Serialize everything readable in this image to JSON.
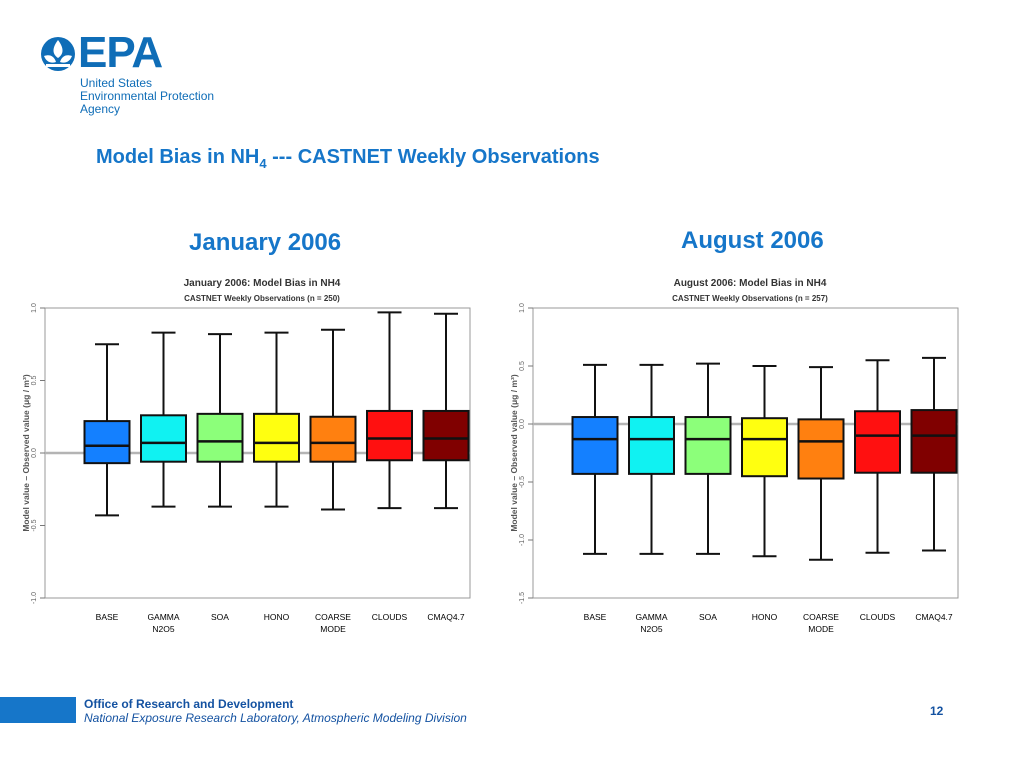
{
  "logo": {
    "word": "EPA",
    "line1": "United States",
    "line2": "Environmental Protection",
    "line3": "Agency"
  },
  "slide": {
    "title_main": "Model Bias in NH",
    "title_sub": "4",
    "title_rest": " --- CASTNET Weekly Observations"
  },
  "panels": [
    {
      "heading": "January 2006"
    },
    {
      "heading": "August 2006"
    }
  ],
  "footer": {
    "line1": "Office of Research and Development",
    "line2": "National Exposure Research Laboratory, Atmospheric Modeling Division",
    "page_number": "12"
  },
  "colors": {
    "brand_blue": "#1676c9",
    "box_colors": [
      "#1480ff",
      "#10f2f2",
      "#8cff7a",
      "#ffff10",
      "#ff8010",
      "#ff1010",
      "#800000"
    ]
  },
  "chart_data": [
    {
      "type": "boxplot",
      "title": "January  2006: Model Bias in NH4",
      "subtitle": "CASTNET Weekly Observations (n = 250)",
      "ylabel": "Model value – Observed value  (μg / m³)",
      "ylim": [
        -1.0,
        1.0
      ],
      "yticks": [
        -1.0,
        -0.5,
        0.0,
        0.5,
        1.0
      ],
      "ytick_labels": [
        "-1.0",
        "-0.5",
        "0.0",
        "0.5",
        "1.0"
      ],
      "reference_line": 0.0,
      "categories": [
        [
          "BASE"
        ],
        [
          "GAMMA",
          "N2O5"
        ],
        [
          "SOA"
        ],
        [
          "HONO"
        ],
        [
          "COARSE",
          "MODE"
        ],
        [
          "CLOUDS"
        ],
        [
          "CMAQ4.7"
        ]
      ],
      "boxes": [
        {
          "whisker_low": -0.43,
          "q1": -0.07,
          "median": 0.05,
          "q3": 0.22,
          "whisker_high": 0.75
        },
        {
          "whisker_low": -0.37,
          "q1": -0.06,
          "median": 0.07,
          "q3": 0.26,
          "whisker_high": 0.83
        },
        {
          "whisker_low": -0.37,
          "q1": -0.06,
          "median": 0.08,
          "q3": 0.27,
          "whisker_high": 0.82
        },
        {
          "whisker_low": -0.37,
          "q1": -0.06,
          "median": 0.07,
          "q3": 0.27,
          "whisker_high": 0.83
        },
        {
          "whisker_low": -0.39,
          "q1": -0.06,
          "median": 0.07,
          "q3": 0.25,
          "whisker_high": 0.85
        },
        {
          "whisker_low": -0.38,
          "q1": -0.05,
          "median": 0.1,
          "q3": 0.29,
          "whisker_high": 0.97
        },
        {
          "whisker_low": -0.38,
          "q1": -0.05,
          "median": 0.1,
          "q3": 0.29,
          "whisker_high": 0.96
        }
      ]
    },
    {
      "type": "boxplot",
      "title": "August  2006: Model Bias in NH4",
      "subtitle": "CASTNET Weekly Observations (n = 257)",
      "ylabel": "Model value – Observed value  (μg / m³)",
      "ylim": [
        -1.5,
        1.0
      ],
      "yticks": [
        -1.5,
        -1.0,
        -0.5,
        0.0,
        0.5,
        1.0
      ],
      "ytick_labels": [
        "-1.5",
        "-1.0",
        "-0.5",
        "0.0",
        "0.5",
        "1.0"
      ],
      "reference_line": 0.0,
      "categories": [
        [
          "BASE"
        ],
        [
          "GAMMA",
          "N2O5"
        ],
        [
          "SOA"
        ],
        [
          "HONO"
        ],
        [
          "COARSE",
          "MODE"
        ],
        [
          "CLOUDS"
        ],
        [
          "CMAQ4.7"
        ]
      ],
      "boxes": [
        {
          "whisker_low": -1.12,
          "q1": -0.43,
          "median": -0.13,
          "q3": 0.06,
          "whisker_high": 0.51
        },
        {
          "whisker_low": -1.12,
          "q1": -0.43,
          "median": -0.13,
          "q3": 0.06,
          "whisker_high": 0.51
        },
        {
          "whisker_low": -1.12,
          "q1": -0.43,
          "median": -0.13,
          "q3": 0.06,
          "whisker_high": 0.52
        },
        {
          "whisker_low": -1.14,
          "q1": -0.45,
          "median": -0.13,
          "q3": 0.05,
          "whisker_high": 0.5
        },
        {
          "whisker_low": -1.17,
          "q1": -0.47,
          "median": -0.15,
          "q3": 0.04,
          "whisker_high": 0.49
        },
        {
          "whisker_low": -1.11,
          "q1": -0.42,
          "median": -0.1,
          "q3": 0.11,
          "whisker_high": 0.55
        },
        {
          "whisker_low": -1.09,
          "q1": -0.42,
          "median": -0.1,
          "q3": 0.12,
          "whisker_high": 0.57
        }
      ]
    }
  ]
}
